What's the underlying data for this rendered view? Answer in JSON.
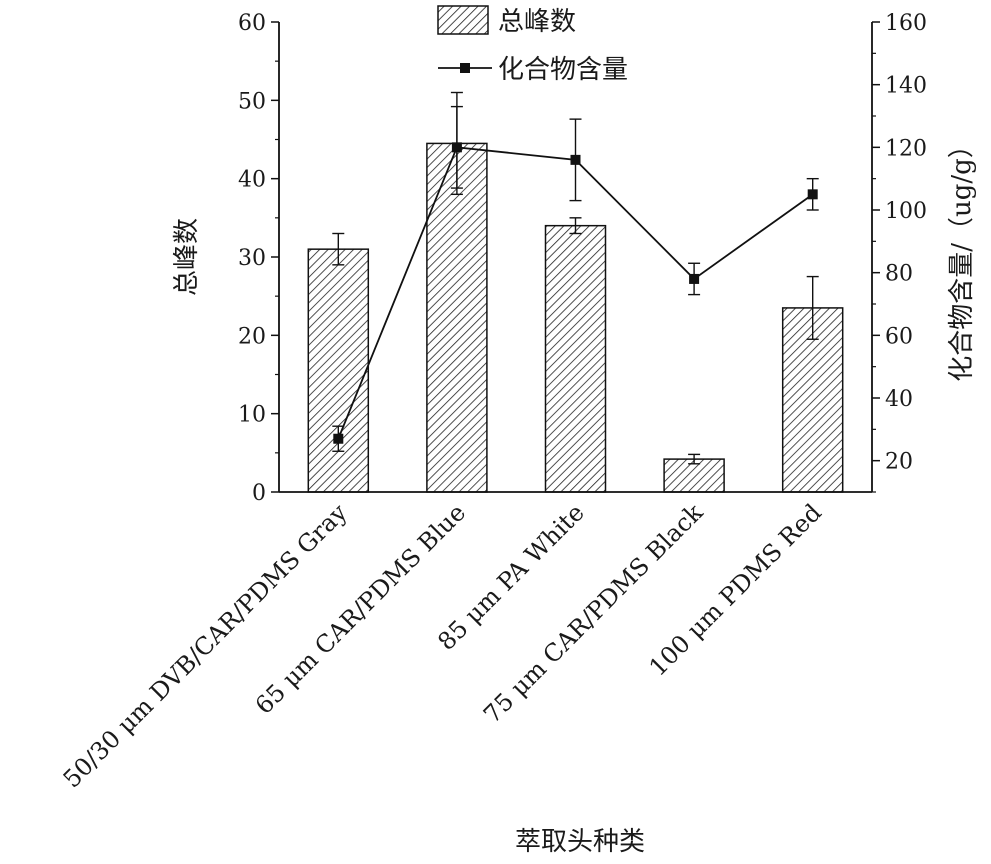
{
  "chart_data": {
    "type": "bar",
    "categories": [
      "50/30 μm DVB/CAR/PDMS Gray",
      "65 μm CAR/PDMS Blue",
      "85 μm PA White",
      "75 μm CAR/PDMS Black",
      "100 μm PDMS Red"
    ],
    "xlabel": "萃取头种类",
    "ylabel_left": "总峰数",
    "ylabel_right": "化合物含量/（ug/g）",
    "ylim_left": [
      0,
      60
    ],
    "yticks_left": [
      "0",
      "10",
      "20",
      "30",
      "40",
      "50",
      "60"
    ],
    "ylim_right": [
      10,
      160
    ],
    "yticks_right": [
      "20",
      "40",
      "60",
      "80",
      "100",
      "120",
      "140",
      "160"
    ],
    "legend_position": "top-center",
    "series": [
      {
        "name": "总峰数",
        "type": "bar",
        "axis": "left",
        "pattern": "diagonal-hatch",
        "values": [
          31,
          44.5,
          34,
          4.2,
          23.5
        ],
        "errors": [
          2,
          6.5,
          1,
          0.6,
          4
        ]
      },
      {
        "name": "化合物含量",
        "type": "line",
        "axis": "right",
        "marker": "square",
        "values": [
          27,
          120,
          116,
          78,
          105
        ],
        "errors": [
          4,
          13,
          13,
          5,
          5
        ]
      }
    ]
  }
}
